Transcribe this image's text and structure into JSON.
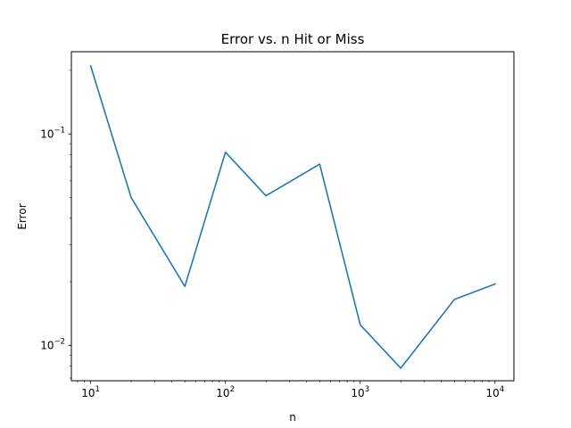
{
  "chart_data": {
    "type": "line",
    "title": "Error vs. n Hit or Miss",
    "xlabel": "n",
    "ylabel": "Error",
    "xscale": "log",
    "yscale": "log",
    "xlim": [
      7.2,
      13800
    ],
    "ylim": [
      0.0068,
      0.245
    ],
    "grid": false,
    "legend": "none",
    "line_color": "#1f77b4",
    "x_ticks": [
      {
        "value": 10,
        "base": "10",
        "exp": "1"
      },
      {
        "value": 100,
        "base": "10",
        "exp": "2"
      },
      {
        "value": 1000,
        "base": "10",
        "exp": "3"
      },
      {
        "value": 10000,
        "base": "10",
        "exp": "4"
      }
    ],
    "y_ticks": [
      {
        "value": 0.1,
        "base": "10",
        "exp": "−1"
      },
      {
        "value": 0.01,
        "base": "10",
        "exp": "−2"
      }
    ],
    "series": [
      {
        "x": [
          10,
          20,
          50,
          100,
          200,
          500,
          1000,
          2000,
          5000,
          10000
        ],
        "y": [
          0.21,
          0.05,
          0.019,
          0.082,
          0.051,
          0.072,
          0.0125,
          0.0078,
          0.0165,
          0.0195
        ]
      }
    ]
  }
}
